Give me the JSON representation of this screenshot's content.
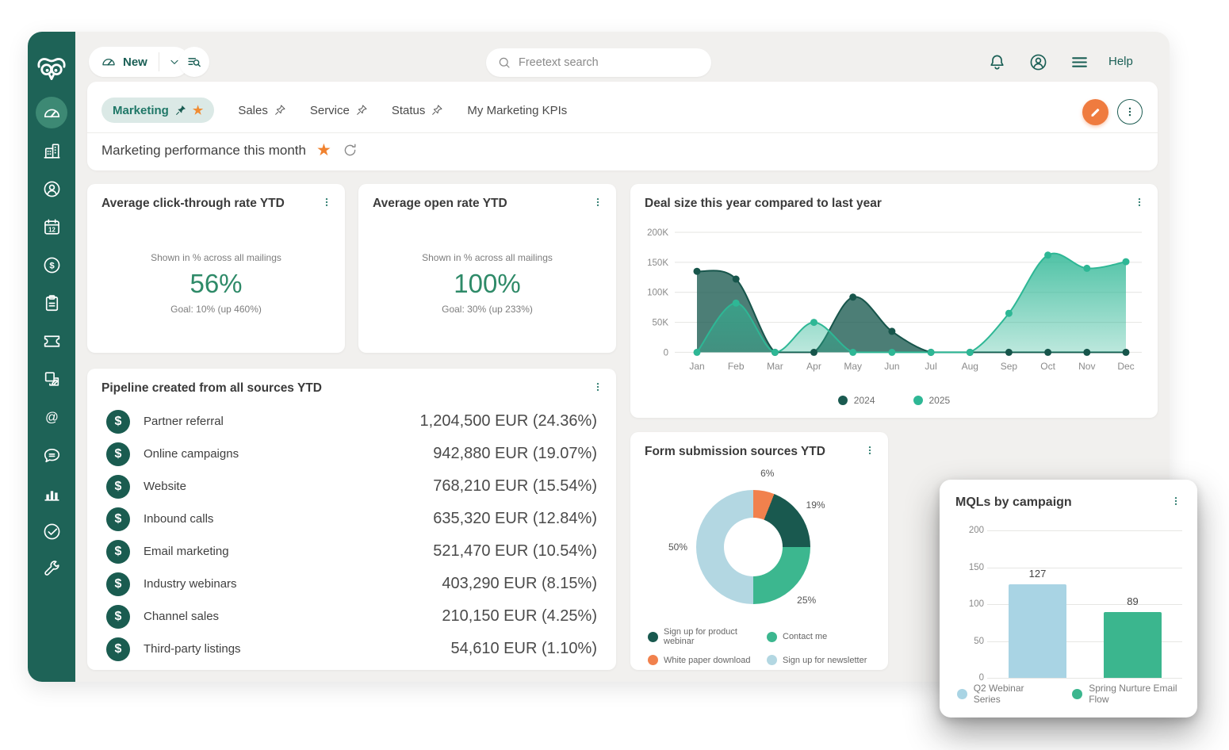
{
  "topbar": {
    "new_button": {
      "label": "New",
      "icon": "dashboard-icon"
    },
    "find_button_icon": "list-search-icon",
    "search": {
      "placeholder": "Freetext search",
      "icon": "search-icon"
    },
    "icons": [
      "bell-icon",
      "profile-icon",
      "menu-icon"
    ],
    "help_label": "Help"
  },
  "sidebar": {
    "logo": "owl-logo",
    "items": [
      {
        "name": "dashboard",
        "icon": "dashboard-icon",
        "active": true
      },
      {
        "name": "companies",
        "icon": "building-icon"
      },
      {
        "name": "contacts",
        "icon": "person-circle-icon"
      },
      {
        "name": "diary",
        "icon": "calendar-icon"
      },
      {
        "name": "sales",
        "icon": "dollar-circle-icon"
      },
      {
        "name": "projects",
        "icon": "clipboard-icon"
      },
      {
        "name": "tickets",
        "icon": "ticket-icon"
      },
      {
        "name": "documents",
        "icon": "documents-icon"
      },
      {
        "name": "mailings",
        "icon": "at-sign-icon"
      },
      {
        "name": "chat",
        "icon": "chat-bubble-icon"
      },
      {
        "name": "reports",
        "icon": "bar-chart-icon"
      },
      {
        "name": "marketing",
        "icon": "target-check-icon"
      },
      {
        "name": "settings",
        "icon": "wrench-icon"
      }
    ]
  },
  "tabs": [
    {
      "label": "Marketing",
      "active": true,
      "pin": "filled",
      "star": true
    },
    {
      "label": "Sales",
      "pin": "outline"
    },
    {
      "label": "Service",
      "pin": "outline"
    },
    {
      "label": "Status",
      "pin": "outline"
    },
    {
      "label": "My Marketing KPIs"
    }
  ],
  "board": {
    "title": "Marketing performance this month",
    "starred": true
  },
  "cards": {
    "click_rate": {
      "title": "Average click-through rate YTD",
      "subtitle": "Shown in % across all mailings",
      "value": "56%",
      "goal": "Goal: 10% (up 460%)"
    },
    "open_rate": {
      "title": "Average open rate YTD",
      "subtitle": "Shown in % across all mailings",
      "value": "100%",
      "goal": "Goal: 30% (up 233%)"
    },
    "deal_size": {
      "title": "Deal size this year compared to last year",
      "chart_data": {
        "type": "area",
        "x": [
          "Jan",
          "Feb",
          "Mar",
          "Apr",
          "May",
          "Jun",
          "Jul",
          "Aug",
          "Sep",
          "Oct",
          "Nov",
          "Dec"
        ],
        "series": [
          {
            "name": "2024",
            "color": "#1a5a50",
            "values": [
              135000,
              122000,
              0,
              0,
              92000,
              35000,
              0,
              0,
              0,
              0,
              0,
              0
            ]
          },
          {
            "name": "2025",
            "color": "#2eb795",
            "values": [
              0,
              82000,
              0,
              50000,
              0,
              0,
              0,
              0,
              65000,
              162000,
              140000,
              151000
            ]
          }
        ],
        "ylim": [
          0,
          200000
        ],
        "yticks": [
          "0",
          "50K",
          "100K",
          "150K",
          "200K"
        ],
        "grid": true,
        "legend_position": "bottom"
      }
    },
    "pipeline": {
      "title": "Pipeline created from all sources YTD",
      "row_icon": "dollar-badge-icon",
      "rows": [
        {
          "label": "Partner referral",
          "value": "1,204,500 EUR (24.36%)"
        },
        {
          "label": "Online campaigns",
          "value": "942,880 EUR (19.07%)"
        },
        {
          "label": "Website",
          "value": "768,210 EUR (15.54%)"
        },
        {
          "label": "Inbound calls",
          "value": "635,320 EUR (12.84%)"
        },
        {
          "label": "Email marketing",
          "value": "521,470 EUR (10.54%)"
        },
        {
          "label": "Industry webinars",
          "value": "403,290 EUR (8.15%)"
        },
        {
          "label": "Channel sales",
          "value": "210,150 EUR (4.25%)"
        },
        {
          "label": "Third-party listings",
          "value": "54,610 EUR (1.10%)"
        }
      ]
    },
    "form_sources": {
      "title": "Form submission sources YTD",
      "chart_data": {
        "type": "pie",
        "slices": [
          {
            "label": "White paper download",
            "pct": 6,
            "color": "#f1814d"
          },
          {
            "label": "Sign up for product webinar",
            "pct": 19,
            "color": "#19594f"
          },
          {
            "label": "Contact me",
            "pct": 25,
            "color": "#3cb78f"
          },
          {
            "label": "Sign up for newsletter",
            "pct": 50,
            "color": "#b3d7e2"
          }
        ],
        "legend_order": [
          "Sign up for product webinar",
          "Contact me",
          "White paper download",
          "Sign up for newsletter"
        ]
      }
    },
    "mqls": {
      "title": "MQLs by campaign",
      "chart_data": {
        "type": "bar",
        "categories": [
          "Q2 Webinar Series",
          "Spring Nurture Email Flow"
        ],
        "values": [
          127,
          89
        ],
        "colors": [
          "#a9d4e4",
          "#3bb68e"
        ],
        "ylim": [
          0,
          200
        ],
        "yticks": [
          0,
          50,
          100,
          150,
          200
        ],
        "grid": true,
        "legend_position": "bottom"
      }
    }
  },
  "colors": {
    "sidebar": "#1e6357",
    "accent_teal": "#1a5f55",
    "accent_orange": "#ef7b3f",
    "kpi_green": "#2e8a68",
    "background": "#f1f0ee"
  }
}
